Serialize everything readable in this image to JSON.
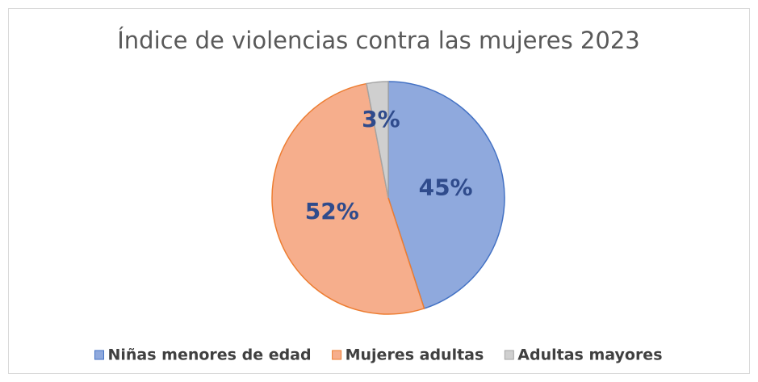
{
  "chart_data": {
    "type": "pie",
    "title": "Índice de violencias contra las mujeres 2023",
    "categories": [
      "Niñas menores de edad",
      "Mujeres adultas",
      "Adultas mayores"
    ],
    "values": [
      45,
      52,
      3
    ],
    "value_labels": [
      "45%",
      "52%",
      "3%"
    ],
    "colors": [
      "#8fa9dd",
      "#f6ae8c",
      "#cfcfcf"
    ],
    "border_colors": [
      "#4472c4",
      "#ed7d31",
      "#a5a5a5"
    ],
    "legend": "bottom"
  }
}
